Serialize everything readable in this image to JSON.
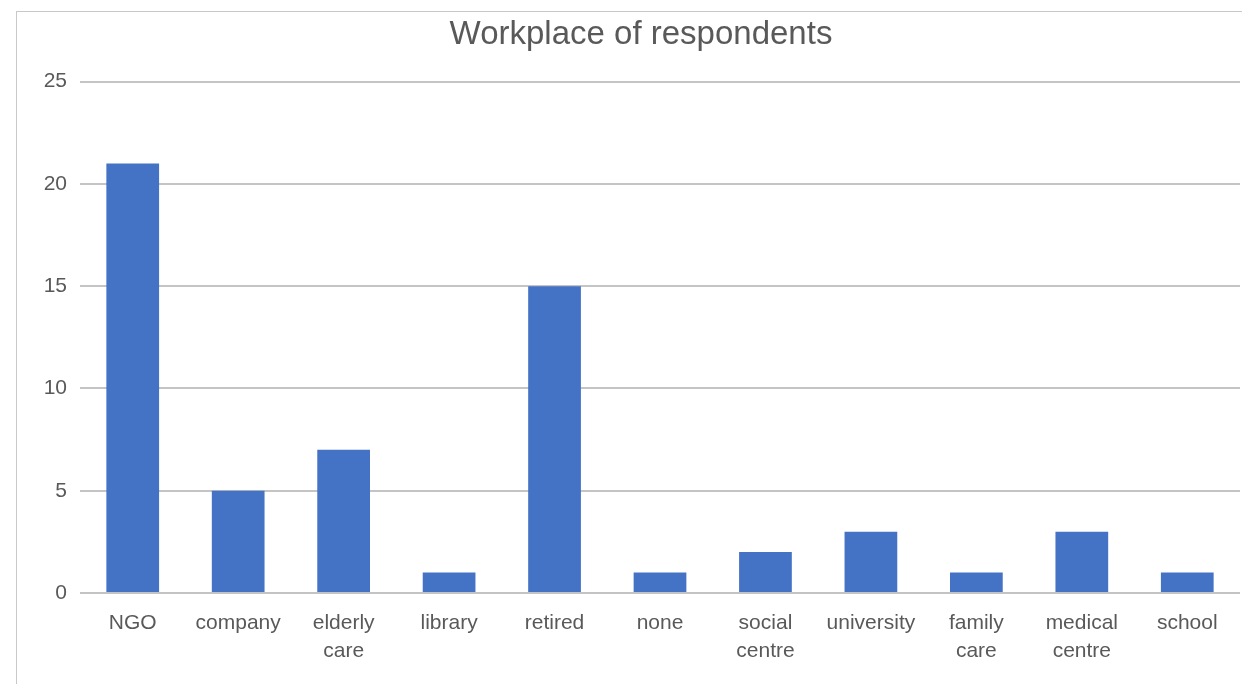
{
  "chart_data": {
    "type": "bar",
    "title": "Workplace of respondents",
    "categories": [
      "NGO",
      "company",
      "elderly care",
      "library",
      "retired",
      "none",
      "social centre",
      "university",
      "family care",
      "medical centre",
      "school"
    ],
    "values": [
      21,
      5,
      7,
      1,
      15,
      1,
      2,
      3,
      1,
      3,
      1
    ],
    "color": "#4472c4",
    "ylim": [
      0,
      25
    ],
    "yticks": [
      0,
      5,
      10,
      15,
      20,
      25
    ],
    "grid": "y"
  }
}
